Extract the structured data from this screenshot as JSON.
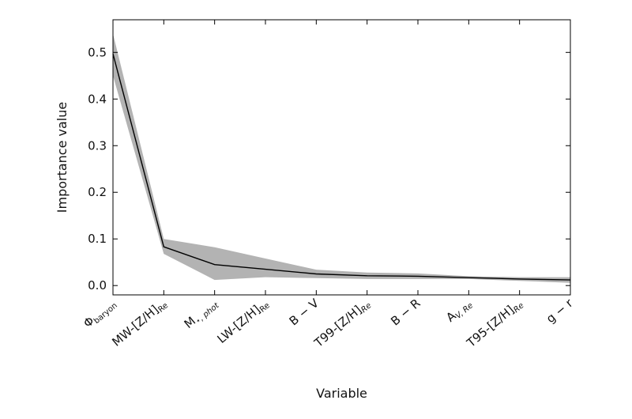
{
  "chart_data": {
    "type": "line",
    "xlabel": "Variable",
    "ylabel": "Importance value",
    "ylim": [
      -0.02,
      0.57
    ],
    "yticks": [
      0.0,
      0.1,
      0.2,
      0.3,
      0.4,
      0.5
    ],
    "grid": false,
    "categories": [
      {
        "main": "Φ",
        "sub": "baryon",
        "sub_style": "normal"
      },
      {
        "main": "MW-[Z/H]",
        "sub": "Re",
        "sub_style": "normal"
      },
      {
        "main": "M",
        "sub": "⋆, phot",
        "sub_style": "italic"
      },
      {
        "main": "LW-[Z/H]",
        "sub": "Re",
        "sub_style": "normal"
      },
      {
        "main": "B − V",
        "sub": "",
        "sub_style": "normal"
      },
      {
        "main": "T99-[Z/H]",
        "sub": "Re",
        "sub_style": "italic"
      },
      {
        "main": "B − R",
        "sub": "",
        "sub_style": "normal"
      },
      {
        "main": "A",
        "sub": "V, Re",
        "sub_style": "italic"
      },
      {
        "main": "T95-[Z/H]",
        "sub": "Re",
        "sub_style": "italic"
      },
      {
        "main": "g − r",
        "sub": "",
        "sub_style": "italic"
      }
    ],
    "series": [
      {
        "values": [
          0.497,
          0.083,
          0.045,
          0.035,
          0.025,
          0.021,
          0.02,
          0.017,
          0.014,
          0.012
        ],
        "lower": [
          0.45,
          0.068,
          0.012,
          0.018,
          0.016,
          0.014,
          0.014,
          0.014,
          0.01,
          0.006
        ],
        "upper": [
          0.54,
          0.1,
          0.082,
          0.058,
          0.034,
          0.028,
          0.026,
          0.02,
          0.018,
          0.018
        ],
        "line_color": "#000000",
        "band_color": "#b3b3b3"
      }
    ]
  }
}
